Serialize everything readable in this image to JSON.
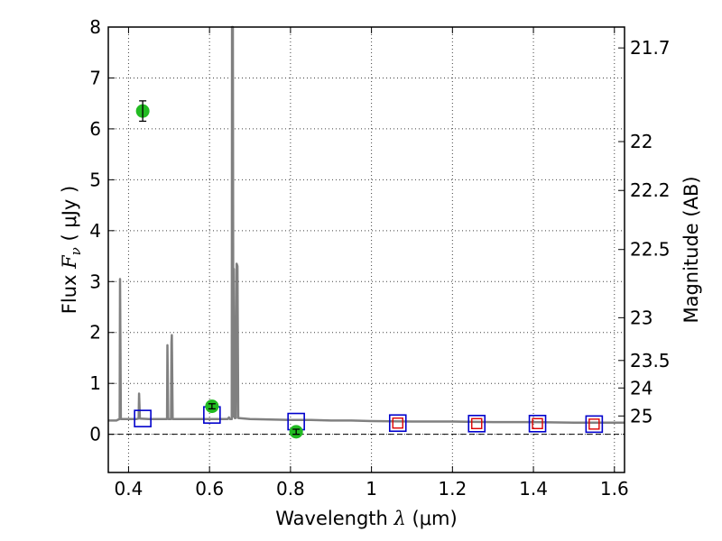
{
  "chart_data": {
    "type": "line",
    "title": "",
    "xlabel": {
      "prefix": "Wavelength  ",
      "symbol": "λ",
      "unit": " (μm)"
    },
    "ylabel": {
      "prefix": "Flux  ",
      "symbol": "F",
      "subscript": "ν",
      "unit": "  ( μJy )"
    },
    "ylabel_right": "Magnitude (AB)",
    "xlim": [
      0.35,
      1.625
    ],
    "ylim": [
      -0.75,
      8
    ],
    "x_ticks": [
      0.4,
      0.6,
      0.8,
      1.0,
      1.2,
      1.4,
      1.6
    ],
    "x_tick_labels": [
      "0.4",
      "0.6",
      "0.8",
      "1",
      "1.2",
      "1.4",
      "1.6"
    ],
    "y_ticks": [
      0,
      1,
      2,
      3,
      4,
      5,
      6,
      7,
      8
    ],
    "y_tick_labels": [
      "0",
      "1",
      "2",
      "3",
      "4",
      "5",
      "6",
      "7",
      "8"
    ],
    "right_ticks": [
      {
        "label": "21.7",
        "flux": 7.59
      },
      {
        "label": "22",
        "flux": 5.75
      },
      {
        "label": "22.2",
        "flux": 4.79
      },
      {
        "label": "22.5",
        "flux": 3.63
      },
      {
        "label": "23",
        "flux": 2.29
      },
      {
        "label": "23.5",
        "flux": 1.45
      },
      {
        "label": "24",
        "flux": 0.91
      },
      {
        "label": "25",
        "flux": 0.36
      }
    ],
    "grid": true,
    "zero_line": true,
    "colors": {
      "sed": "#808080",
      "observed": "#22bb22",
      "model_box": "#0000cc",
      "model_box_inner": "#dd0000"
    },
    "series": [
      {
        "name": "model SED",
        "style": "line",
        "points": [
          [
            0.35,
            0.27
          ],
          [
            0.37,
            0.27
          ],
          [
            0.375,
            0.29
          ],
          [
            0.378,
            0.3
          ],
          [
            0.379,
            3.05
          ],
          [
            0.381,
            0.3
          ],
          [
            0.4,
            0.3
          ],
          [
            0.42,
            0.3
          ],
          [
            0.425,
            0.31
          ],
          [
            0.426,
            0.8
          ],
          [
            0.428,
            0.31
          ],
          [
            0.45,
            0.3
          ],
          [
            0.48,
            0.3
          ],
          [
            0.495,
            0.3
          ],
          [
            0.496,
            1.75
          ],
          [
            0.498,
            0.3
          ],
          [
            0.505,
            0.3
          ],
          [
            0.506,
            1.8
          ],
          [
            0.507,
            1.95
          ],
          [
            0.509,
            0.3
          ],
          [
            0.55,
            0.3
          ],
          [
            0.6,
            0.3
          ],
          [
            0.64,
            0.3
          ],
          [
            0.645,
            0.3
          ],
          [
            0.648,
            0.33
          ],
          [
            0.65,
            0.3
          ],
          [
            0.655,
            0.3
          ],
          [
            0.6555,
            8.0
          ],
          [
            0.6575,
            8.0
          ],
          [
            0.659,
            0.35
          ],
          [
            0.66,
            3.25
          ],
          [
            0.662,
            0.32
          ],
          [
            0.665,
            0.32
          ],
          [
            0.667,
            3.35
          ],
          [
            0.669,
            3.3
          ],
          [
            0.671,
            0.32
          ],
          [
            0.7,
            0.3
          ],
          [
            0.75,
            0.29
          ],
          [
            0.8,
            0.28
          ],
          [
            0.85,
            0.28
          ],
          [
            0.9,
            0.27
          ],
          [
            0.95,
            0.27
          ],
          [
            1.0,
            0.26
          ],
          [
            1.1,
            0.25
          ],
          [
            1.2,
            0.25
          ],
          [
            1.3,
            0.24
          ],
          [
            1.4,
            0.24
          ],
          [
            1.5,
            0.23
          ],
          [
            1.625,
            0.23
          ]
        ]
      },
      {
        "name": "observed photometry",
        "style": "errorbar",
        "points": [
          {
            "x": 0.435,
            "y": 6.35,
            "err": 0.2
          },
          {
            "x": 0.606,
            "y": 0.55,
            "err": 0.05
          },
          {
            "x": 0.814,
            "y": 0.05,
            "err": 0.05
          }
        ]
      },
      {
        "name": "model photometry",
        "style": "open-square",
        "points": [
          {
            "x": 0.435,
            "y": 0.31
          },
          {
            "x": 0.606,
            "y": 0.38
          },
          {
            "x": 0.814,
            "y": 0.25
          },
          {
            "x": 1.065,
            "y": 0.22,
            "inner": true
          },
          {
            "x": 1.26,
            "y": 0.21,
            "inner": true
          },
          {
            "x": 1.41,
            "y": 0.21,
            "inner": true
          },
          {
            "x": 1.55,
            "y": 0.2,
            "inner": true
          }
        ]
      }
    ]
  }
}
